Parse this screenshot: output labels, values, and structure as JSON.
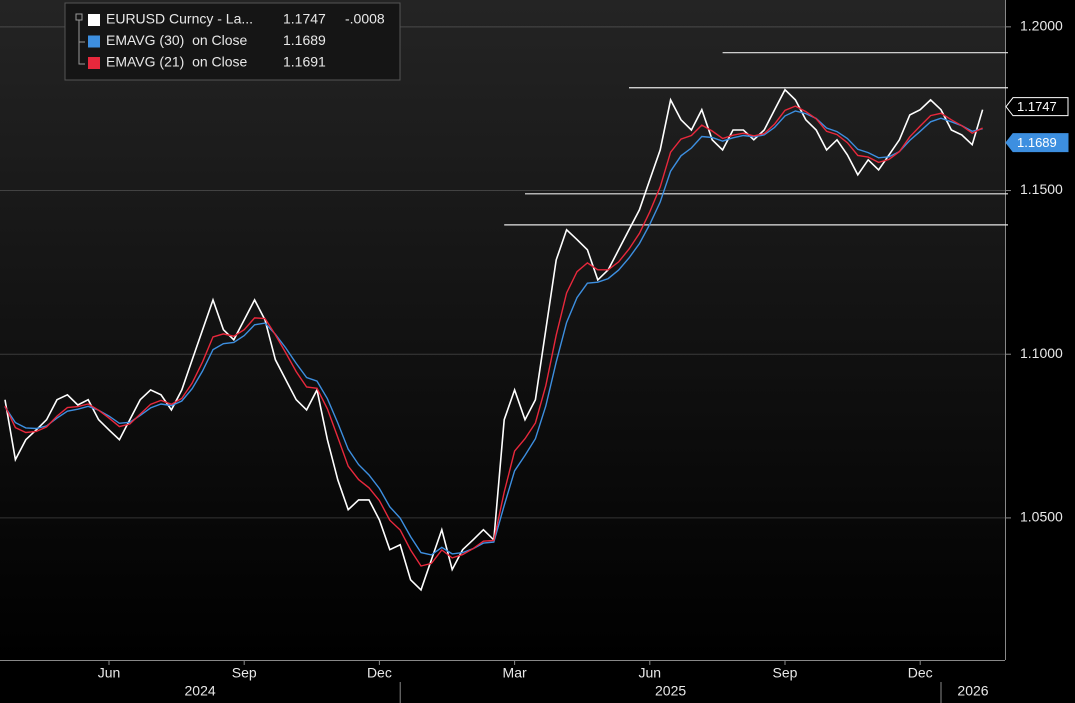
{
  "chart_data": {
    "type": "line",
    "categories": [
      null,
      null,
      null,
      null,
      null,
      null,
      null,
      null,
      null,
      null,
      "Jun",
      null,
      null,
      null,
      null,
      null,
      null,
      null,
      null,
      null,
      null,
      null,
      null,
      "Sep",
      null,
      null,
      null,
      null,
      null,
      null,
      null,
      null,
      null,
      null,
      null,
      null,
      "Dec",
      null,
      null,
      null,
      null,
      null,
      null,
      null,
      null,
      null,
      null,
      null,
      null,
      "Mar",
      null,
      null,
      null,
      null,
      null,
      null,
      null,
      null,
      null,
      null,
      null,
      null,
      "Jun",
      null,
      null,
      null,
      null,
      null,
      null,
      null,
      null,
      null,
      null,
      null,
      null,
      "Sep",
      null,
      null,
      null,
      null,
      null,
      null,
      null,
      null,
      null,
      null,
      null,
      null,
      "Dec",
      null,
      null,
      null,
      null,
      null,
      null
    ],
    "years": [
      "2024",
      "2025",
      "2026"
    ],
    "series": [
      {
        "name": "EURUSD Curncy - La...",
        "color": "#ffffff",
        "change": {
          "value": -0.0008,
          "label": "-.0008"
        },
        "values": [
          1.0861,
          1.0678,
          1.0739,
          1.0769,
          1.08,
          1.0861,
          1.0876,
          1.0845,
          1.0861,
          1.08,
          1.0769,
          1.0739,
          1.08,
          1.0861,
          1.0891,
          1.0876,
          1.083,
          1.0891,
          1.0983,
          1.1075,
          1.1166,
          1.1075,
          1.1044,
          1.1105,
          1.1166,
          1.1105,
          1.0983,
          1.0922,
          1.0861,
          1.083,
          1.0891,
          1.0739,
          1.0616,
          1.0525,
          1.0555,
          1.0555,
          1.0494,
          1.0403,
          1.0418,
          1.0311,
          1.028,
          1.0372,
          1.0464,
          1.0342,
          1.0403,
          1.0433,
          1.0464,
          1.0433,
          1.08,
          1.0891,
          1.08,
          1.0861,
          1.1075,
          1.1288,
          1.138,
          1.135,
          1.1319,
          1.1227,
          1.1258,
          1.1319,
          1.138,
          1.1441,
          1.1533,
          1.1624,
          1.1777,
          1.1716,
          1.1685,
          1.1747,
          1.1655,
          1.1624,
          1.1685,
          1.1685,
          1.1655,
          1.1685,
          1.1747,
          1.1808,
          1.1777,
          1.1716,
          1.1685,
          1.1624,
          1.1655,
          1.1609,
          1.1548,
          1.1594,
          1.1563,
          1.1609,
          1.1655,
          1.1731,
          1.1747,
          1.1777,
          1.1747,
          1.1685,
          1.167,
          1.164,
          1.1747
        ]
      },
      {
        "name": "EMAVG (30)  on Close",
        "color": "#3d8fe0",
        "values": [
          1.0839,
          1.0791,
          1.0775,
          1.0773,
          1.0781,
          1.0805,
          1.0826,
          1.0832,
          1.0841,
          1.0829,
          1.0811,
          1.0789,
          1.0792,
          1.0813,
          1.0836,
          1.0848,
          1.0843,
          1.0857,
          1.0895,
          1.0949,
          1.1014,
          1.1032,
          1.1036,
          1.1057,
          1.109,
          1.1095,
          1.1061,
          1.1019,
          1.0972,
          1.0929,
          1.0918,
          1.0864,
          1.079,
          1.071,
          1.0663,
          1.0631,
          1.059,
          1.0534,
          1.0499,
          1.0443,
          1.0394,
          1.0387,
          1.041,
          1.039,
          1.0394,
          1.0406,
          1.0423,
          1.0426,
          1.0538,
          1.0644,
          1.0691,
          1.0742,
          1.0842,
          1.0976,
          1.1097,
          1.1173,
          1.1217,
          1.122,
          1.1231,
          1.1257,
          1.1294,
          1.1338,
          1.1397,
          1.1465,
          1.1559,
          1.1606,
          1.163,
          1.1665,
          1.1662,
          1.1651,
          1.1661,
          1.1668,
          1.1664,
          1.167,
          1.1693,
          1.1728,
          1.1743,
          1.1735,
          1.172,
          1.1691,
          1.168,
          1.1659,
          1.1626,
          1.1616,
          1.16,
          1.1603,
          1.1619,
          1.1653,
          1.1681,
          1.171,
          1.1721,
          1.171,
          1.1698,
          1.1681,
          1.1689
        ]
      },
      {
        "name": "EMAVG (21)  on Close",
        "color": "#e8283c",
        "values": [
          1.0842,
          1.0776,
          1.0761,
          1.0764,
          1.0778,
          1.0811,
          1.0837,
          1.084,
          1.0848,
          1.0829,
          1.0805,
          1.0779,
          1.0787,
          1.0817,
          1.0847,
          1.0859,
          1.0847,
          1.0865,
          1.0912,
          1.0977,
          1.1053,
          1.1062,
          1.1055,
          1.1075,
          1.1111,
          1.1109,
          1.1059,
          1.1004,
          1.0947,
          1.09,
          1.0896,
          1.0833,
          1.0746,
          1.0658,
          1.0617,
          1.0592,
          1.0553,
          1.0493,
          1.0463,
          1.0402,
          1.0353,
          1.0361,
          1.0402,
          1.0378,
          1.0388,
          1.0406,
          1.0429,
          1.0431,
          1.0579,
          1.0704,
          1.0742,
          1.079,
          1.0904,
          1.1058,
          1.1187,
          1.1252,
          1.1279,
          1.1258,
          1.1258,
          1.1282,
          1.1321,
          1.1369,
          1.1435,
          1.1511,
          1.1617,
          1.1657,
          1.1668,
          1.17,
          1.1682,
          1.1659,
          1.1669,
          1.1675,
          1.1667,
          1.1674,
          1.1703,
          1.1745,
          1.1758,
          1.1741,
          1.1719,
          1.1681,
          1.1671,
          1.1646,
          1.1607,
          1.1602,
          1.1586,
          1.1595,
          1.1619,
          1.1664,
          1.1697,
          1.1729,
          1.1736,
          1.1716,
          1.1698,
          1.1675,
          1.1691
        ]
      }
    ],
    "levels": [
      {
        "value": 1.1921,
        "from": 69
      },
      {
        "value": 1.1814,
        "from": 60
      },
      {
        "value": 1.149,
        "from": 50
      },
      {
        "value": 1.1395,
        "from": 48
      }
    ],
    "ylim": [
      1.0066,
      1.2082
    ],
    "yticks": [
      {
        "value": 1.05,
        "label": "1.0500"
      },
      {
        "value": 1.1,
        "label": "1.1000"
      },
      {
        "value": 1.15,
        "label": "1.1500"
      },
      {
        "value": 1.2,
        "label": "1.2000"
      }
    ],
    "grid": true
  }
}
